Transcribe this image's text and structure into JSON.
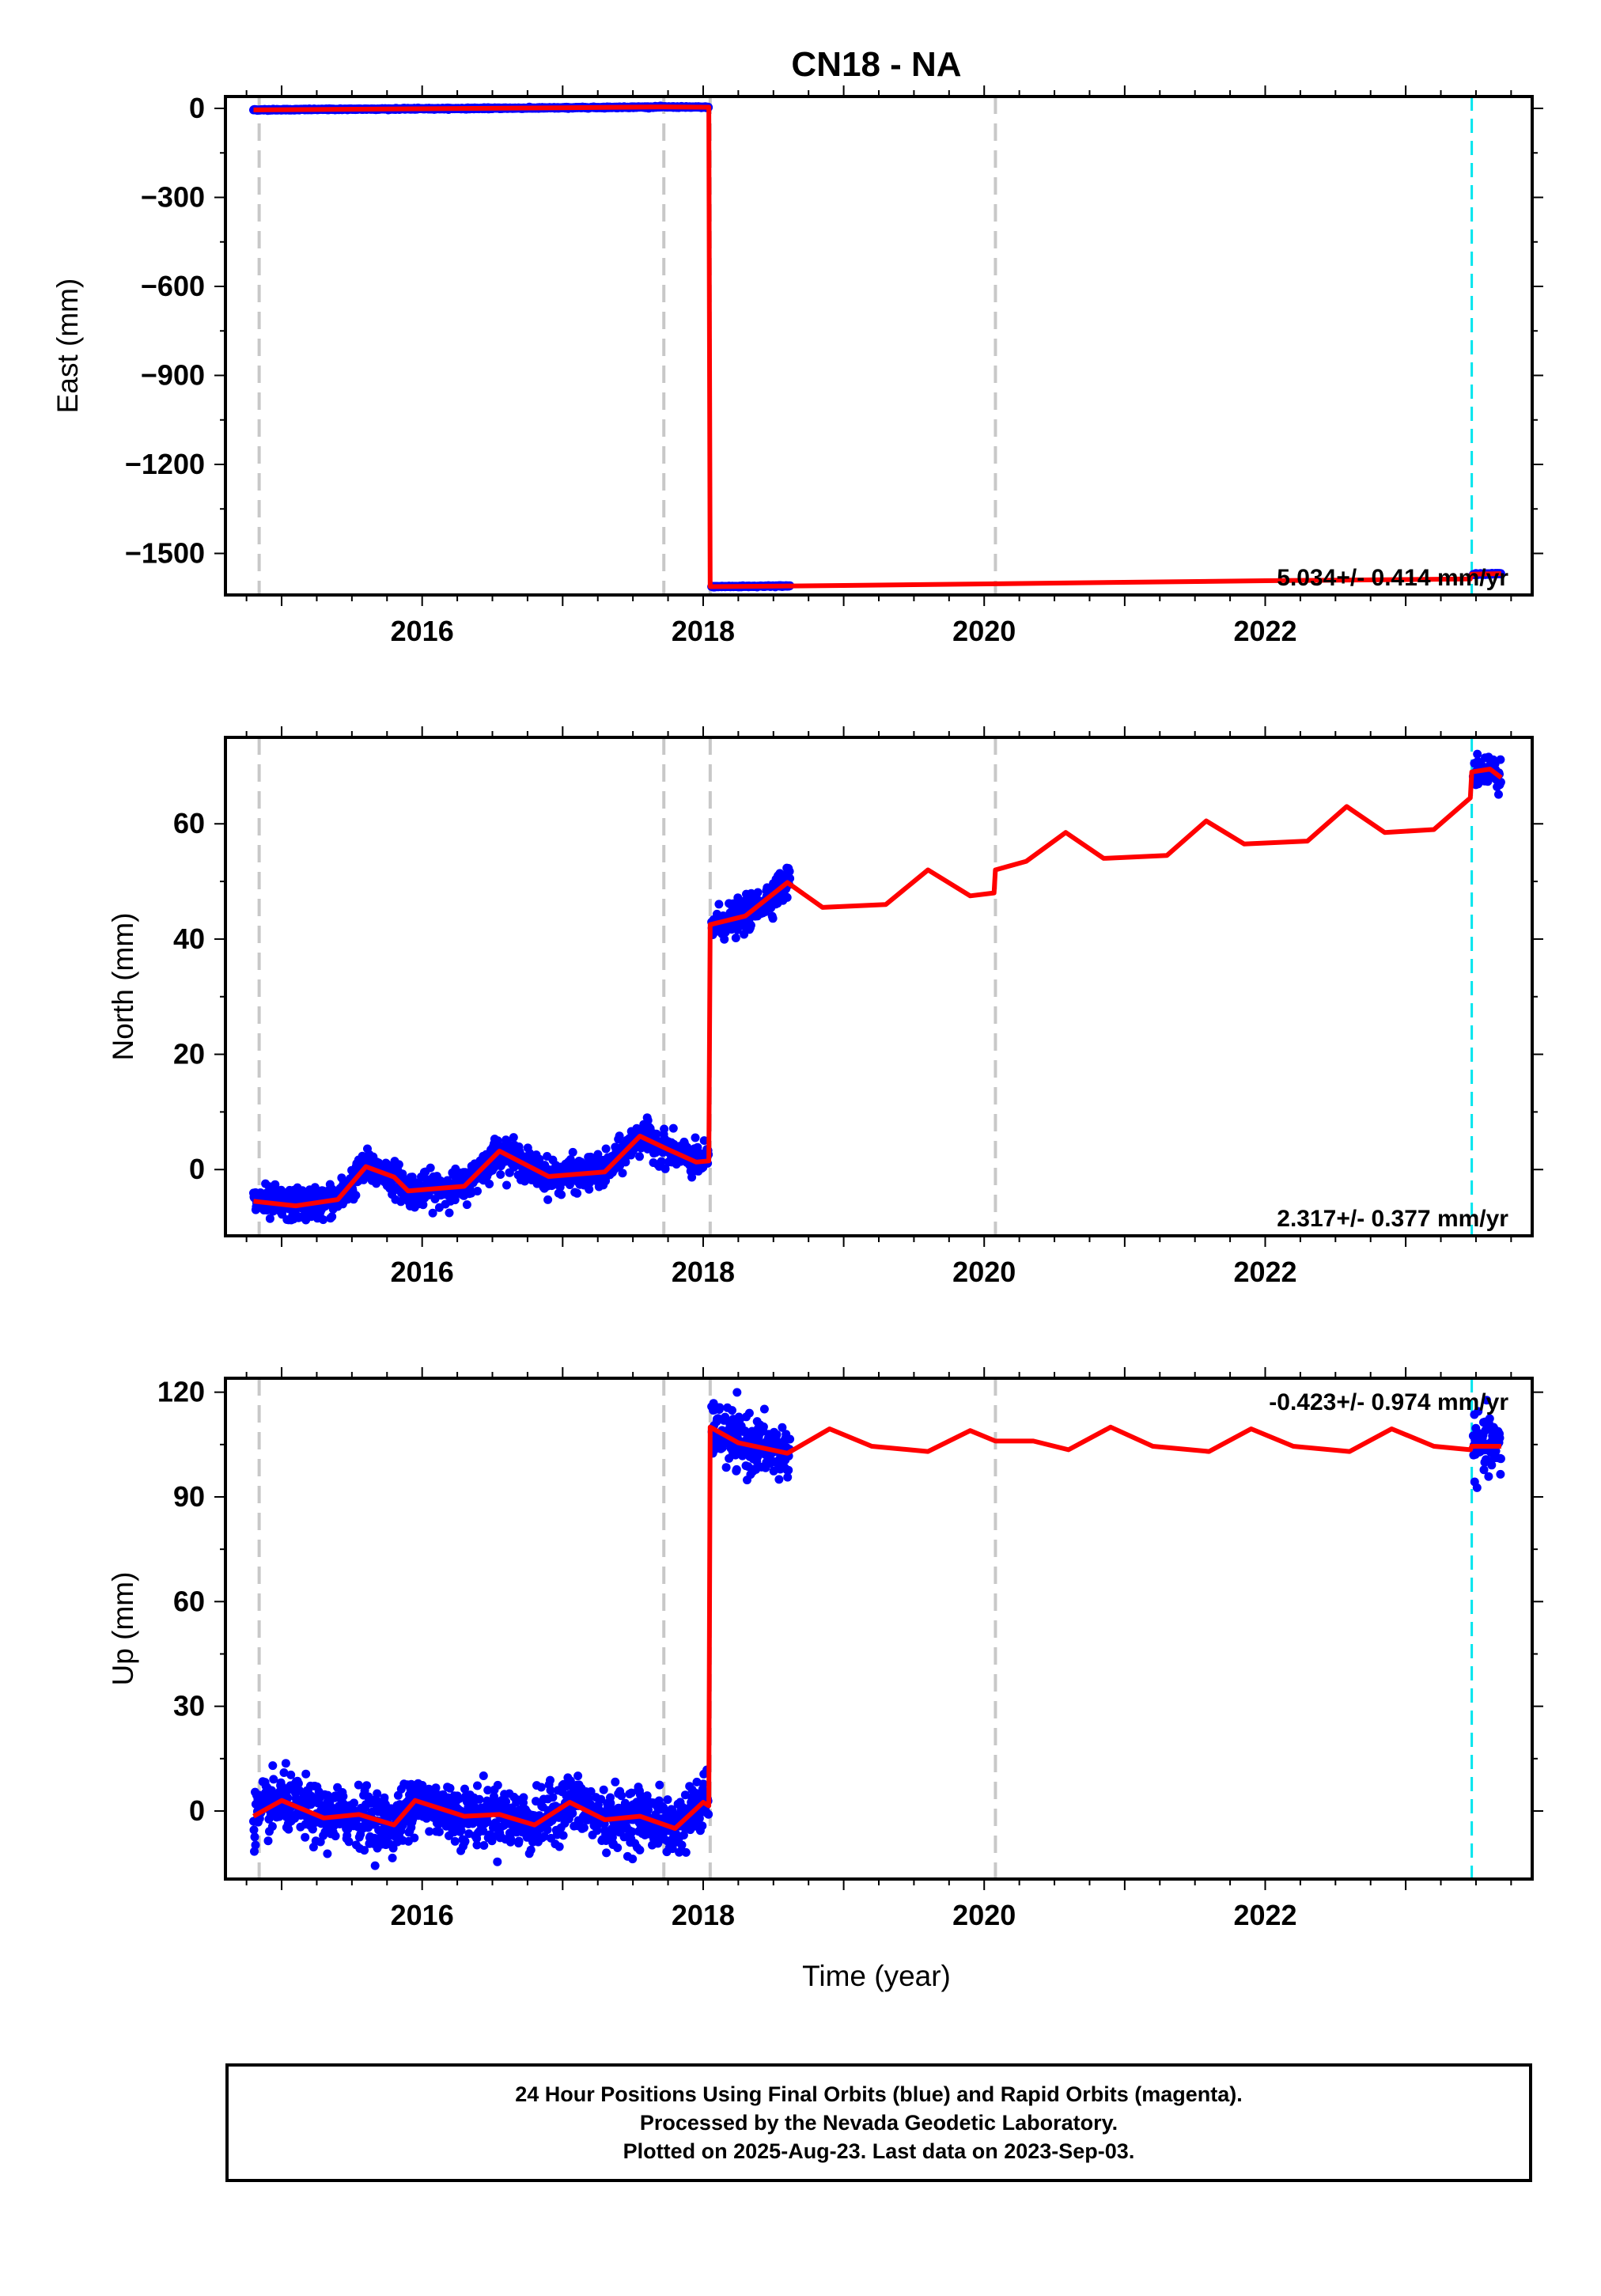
{
  "title": "CN18 - NA",
  "xlabel": "Time (year)",
  "colors": {
    "final_orbits": "#0000ff",
    "model": "#ff0000",
    "event_line": "#c8c8c8",
    "equipment_line": "#00e5ee"
  },
  "footer": {
    "line1": "24 Hour Positions Using Final Orbits (blue) and Rapid Orbits (magenta).",
    "line2": "Processed by the Nevada Geodetic Laboratory.",
    "line3": "Plotted on 2025-Aug-23. Last data on 2023-Sep-03."
  },
  "chart_data": [
    {
      "type": "scatter",
      "component": "East",
      "ylabel": "East (mm)",
      "rate_label": "5.034+/- 0.414 mm/yr",
      "xlim": [
        2014.6,
        2023.9
      ],
      "ylim": [
        -1640,
        40
      ],
      "x_ticks": [
        2016,
        2018,
        2020,
        2022
      ],
      "y_ticks": [
        0,
        -300,
        -600,
        -900,
        -1200,
        -1500
      ],
      "y_tick_labels": [
        "0",
        "−300",
        "−600",
        "−900",
        "−1200",
        "−1500"
      ],
      "gray_dashed_x": [
        2014.84,
        2017.72,
        2018.05,
        2020.08
      ],
      "cyan_dashed_x": [
        2023.47
      ],
      "segments": [
        {
          "x": [
            2014.8,
            2015.95
          ],
          "offset": -2
        },
        {
          "x": [
            2015.9,
            2018.04
          ],
          "offset": -4
        },
        {
          "x": [
            2018.06,
            2018.62
          ],
          "offset": -1610
        },
        {
          "x": [
            2023.48,
            2023.68
          ],
          "offset": -1570
        }
      ],
      "model": [
        [
          2014.8,
          -5
        ],
        [
          2017.0,
          2
        ],
        [
          2017.7,
          5
        ],
        [
          2018.04,
          4
        ],
        [
          2018.05,
          -1612
        ],
        [
          2019.0,
          -1608
        ],
        [
          2020.5,
          -1600
        ],
        [
          2022.0,
          -1592
        ],
        [
          2023.46,
          -1586
        ],
        [
          2023.47,
          -1570
        ],
        [
          2023.68,
          -1568
        ]
      ]
    },
    {
      "type": "scatter",
      "component": "North",
      "ylabel": "North (mm)",
      "rate_label": "2.317+/- 0.377 mm/yr",
      "xlim": [
        2014.6,
        2023.9
      ],
      "ylim": [
        -11.5,
        75
      ],
      "x_ticks": [
        2016,
        2018,
        2020,
        2022
      ],
      "y_ticks": [
        0,
        20,
        40,
        60
      ],
      "y_tick_labels": [
        "0",
        "20",
        "40",
        "60"
      ],
      "gray_dashed_x": [
        2014.84,
        2017.72,
        2018.05,
        2020.08
      ],
      "cyan_dashed_x": [
        2023.47
      ],
      "model": [
        [
          2014.8,
          -5.5
        ],
        [
          2015.1,
          -6.3
        ],
        [
          2015.4,
          -5.2
        ],
        [
          2015.6,
          0.5
        ],
        [
          2015.8,
          -1.3
        ],
        [
          2015.9,
          -3.7
        ],
        [
          2016.3,
          -2.9
        ],
        [
          2016.55,
          3.2
        ],
        [
          2016.9,
          -1.2
        ],
        [
          2017.3,
          -0.4
        ],
        [
          2017.55,
          5.8
        ],
        [
          2017.75,
          3.5
        ],
        [
          2017.95,
          1.3
        ],
        [
          2018.04,
          1.5
        ],
        [
          2018.05,
          42.5
        ],
        [
          2018.3,
          44.0
        ],
        [
          2018.6,
          49.8
        ],
        [
          2018.85,
          45.5
        ],
        [
          2019.3,
          46.0
        ],
        [
          2019.6,
          52.0
        ],
        [
          2019.9,
          47.5
        ],
        [
          2020.07,
          48.0
        ],
        [
          2020.08,
          52.0
        ],
        [
          2020.3,
          53.5
        ],
        [
          2020.58,
          58.5
        ],
        [
          2020.85,
          54.0
        ],
        [
          2021.3,
          54.5
        ],
        [
          2021.58,
          60.5
        ],
        [
          2021.85,
          56.5
        ],
        [
          2022.3,
          57.0
        ],
        [
          2022.58,
          63.0
        ],
        [
          2022.85,
          58.5
        ],
        [
          2023.2,
          59.0
        ],
        [
          2023.46,
          64.5
        ],
        [
          2023.47,
          69.0
        ],
        [
          2023.6,
          69.5
        ],
        [
          2023.68,
          68.0
        ]
      ],
      "segments": [
        {
          "x": [
            2014.8,
            2015.95
          ],
          "offset": 0
        },
        {
          "x": [
            2015.9,
            2018.04
          ],
          "offset": 0
        },
        {
          "x": [
            2018.06,
            2018.62
          ],
          "offset": 0
        },
        {
          "x": [
            2023.48,
            2023.68
          ],
          "offset": 0
        }
      ],
      "scatter_sigma": 1.4
    },
    {
      "type": "scatter",
      "component": "Up",
      "ylabel": "Up (mm)",
      "rate_label": "-0.423+/- 0.974 mm/yr",
      "xlim": [
        2014.6,
        2023.9
      ],
      "ylim": [
        -19.5,
        124
      ],
      "x_ticks": [
        2016,
        2018,
        2020,
        2022
      ],
      "y_ticks": [
        0,
        30,
        60,
        90,
        120
      ],
      "y_tick_labels": [
        "0",
        "30",
        "60",
        "90",
        "120"
      ],
      "gray_dashed_x": [
        2014.84,
        2017.72,
        2018.05,
        2020.08
      ],
      "cyan_dashed_x": [
        2023.47
      ],
      "model": [
        [
          2014.8,
          -1.5
        ],
        [
          2015.0,
          3.0
        ],
        [
          2015.3,
          -2.0
        ],
        [
          2015.55,
          -1.0
        ],
        [
          2015.8,
          -4.0
        ],
        [
          2015.95,
          3.0
        ],
        [
          2016.3,
          -1.5
        ],
        [
          2016.55,
          -1.0
        ],
        [
          2016.8,
          -4.0
        ],
        [
          2017.05,
          2.5
        ],
        [
          2017.3,
          -2.5
        ],
        [
          2017.55,
          -1.5
        ],
        [
          2017.8,
          -5.0
        ],
        [
          2018.0,
          2.5
        ],
        [
          2018.04,
          1.5
        ],
        [
          2018.05,
          110.0
        ],
        [
          2018.25,
          105.5
        ],
        [
          2018.6,
          102.5
        ],
        [
          2018.9,
          109.5
        ],
        [
          2019.2,
          104.5
        ],
        [
          2019.6,
          103.0
        ],
        [
          2019.9,
          109.0
        ],
        [
          2020.08,
          106.0
        ],
        [
          2020.35,
          106.0
        ],
        [
          2020.6,
          103.5
        ],
        [
          2020.9,
          110.0
        ],
        [
          2021.2,
          104.5
        ],
        [
          2021.6,
          103.0
        ],
        [
          2021.9,
          109.5
        ],
        [
          2022.2,
          104.5
        ],
        [
          2022.6,
          103.0
        ],
        [
          2022.9,
          109.5
        ],
        [
          2023.2,
          104.5
        ],
        [
          2023.46,
          103.5
        ],
        [
          2023.47,
          104.5
        ],
        [
          2023.68,
          104.5
        ]
      ],
      "segments": [
        {
          "x": [
            2014.8,
            2015.95
          ],
          "offset": 0
        },
        {
          "x": [
            2015.9,
            2018.04
          ],
          "offset": 0
        },
        {
          "x": [
            2018.06,
            2018.62
          ],
          "offset": 0
        },
        {
          "x": [
            2023.48,
            2023.68
          ],
          "offset": 0
        }
      ],
      "scatter_sigma": 4.0
    }
  ]
}
